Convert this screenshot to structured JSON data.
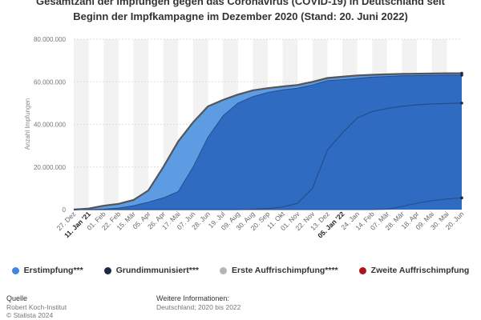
{
  "chart_data": {
    "type": "area",
    "title_lines": [
      "Gesamtzahl der Impfungen gegen das Coronavirus (COVID-19) in Deutschland seit",
      "Beginn der Impfkampagne im Dezember 2020 (Stand: 20. Juni 2022)"
    ],
    "ylabel": "Anzahl Impfungen",
    "ylim": [
      0,
      80000000
    ],
    "yticks": [
      "0",
      "20.000.000",
      "40.000.000",
      "60.000.000",
      "80.000.000"
    ],
    "ytick_values": [
      0,
      20000000,
      40000000,
      60000000,
      80000000
    ],
    "x": [
      "27. Dez",
      "11. Jan '21",
      "01. Feb",
      "22. Feb",
      "15. Mär",
      "05. Apr",
      "26. Apr",
      "17. Mai",
      "07. Jun",
      "28. Jun",
      "19. Jul",
      "09. Aug",
      "30. Aug",
      "20. Sep",
      "11. Okt",
      "01. Nov",
      "22. Nov",
      "13. Dez",
      "05. Jan '22",
      "24. Jan",
      "14. Feb",
      "07. Mär",
      "28. Mär",
      "18. Apr",
      "09. Mai",
      "30. Mai",
      "20. Jun"
    ],
    "bold_ticks": [
      1,
      18
    ],
    "legend_position": "bottom",
    "grid": true,
    "series": [
      {
        "name": "Erstimpfung***",
        "color": "#5d9be3",
        "values": [
          0,
          500000,
          1800000,
          2700000,
          4500000,
          9000000,
          20000000,
          32000000,
          41000000,
          48500000,
          51500000,
          54000000,
          56000000,
          57000000,
          57800000,
          58500000,
          60000000,
          61800000,
          62400000,
          63000000,
          63300000,
          63500000,
          63700000,
          63800000,
          63900000,
          64000000,
          64000000
        ]
      },
      {
        "name": "Grundimmunisiert***",
        "color": "#1b2a48",
        "values": [
          0,
          0,
          200000,
          700000,
          1800000,
          3500000,
          5500000,
          8500000,
          20000000,
          34000000,
          44000000,
          50000000,
          53000000,
          55000000,
          56200000,
          57000000,
          58500000,
          60500000,
          61000000,
          61600000,
          62200000,
          62500000,
          62800000,
          62900000,
          63000000,
          63100000,
          63100000
        ]
      },
      {
        "name": "Erste Auffrischimpfung****",
        "color": "#b5b5b5",
        "values": [
          0,
          0,
          0,
          0,
          0,
          0,
          0,
          0,
          0,
          0,
          0,
          0,
          200000,
          500000,
          1200000,
          3000000,
          10000000,
          28000000,
          36000000,
          43000000,
          46000000,
          47500000,
          48500000,
          49200000,
          49600000,
          49800000,
          50000000
        ]
      },
      {
        "name": "Zweite Auffrischimpfung",
        "color": "#a11d21",
        "values": [
          0,
          0,
          0,
          0,
          0,
          0,
          0,
          0,
          0,
          0,
          0,
          0,
          0,
          0,
          0,
          0,
          0,
          0,
          0,
          0,
          0,
          200000,
          1500000,
          3000000,
          4200000,
          5000000,
          5500000
        ]
      }
    ],
    "legend_dot_colors": [
      "#3f88e0",
      "#1b2a48",
      "#b5b5b5",
      "#b0141b"
    ]
  },
  "colors": {
    "area_top": "#5d9be3",
    "area_main": "#2e6bc1",
    "line_outer": "#555555",
    "line_inner": "#234e8c",
    "band": "#f2f2f2"
  },
  "footer": {
    "source_head": "Quelle",
    "source_lines": [
      "Robert Koch-Institut",
      "© Statista 2024"
    ],
    "info_head": "Weitere Informationen:",
    "info_lines": [
      "Deutschland; 2020 bis 2022"
    ]
  }
}
